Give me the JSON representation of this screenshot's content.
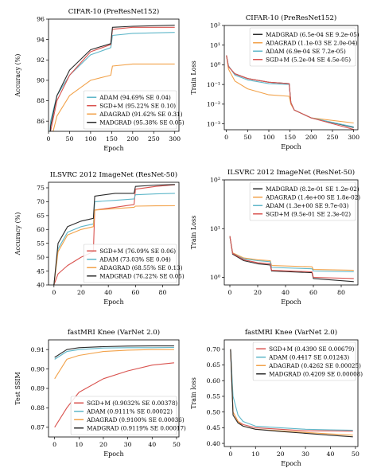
{
  "colors": {
    "ADAM": "#5fb7c9",
    "ADAGRAD": "#f2a24a",
    "MADGRAD": "#2b2b2b",
    "SGD": "#d9534f"
  },
  "chart_data": [
    {
      "type": "line",
      "title": "CIFAR-10 (PreResNet152)",
      "xlabel": "Epoch",
      "ylabel": "Accuracy (%)",
      "xlim": [
        0,
        310
      ],
      "ylim": [
        85,
        96
      ],
      "xticks": [
        0,
        50,
        100,
        150,
        200,
        250,
        300
      ],
      "yticks": [
        86,
        88,
        90,
        92,
        94,
        96
      ],
      "legend_position": "lower-right",
      "series": [
        {
          "name": "ADAM (94.69% SE 0.04)",
          "key": "ADAM",
          "x": [
            0,
            5,
            20,
            50,
            100,
            148,
            152,
            200,
            300
          ],
          "y": [
            82,
            86,
            88.5,
            90.5,
            92.5,
            93.2,
            94.4,
            94.6,
            94.7
          ]
        },
        {
          "name": "SGD+M (95.22% SE 0.10)",
          "key": "SGD",
          "x": [
            0,
            5,
            20,
            50,
            100,
            148,
            152,
            200,
            300
          ],
          "y": [
            81,
            85,
            88,
            90.5,
            92.8,
            93.5,
            95.0,
            95.2,
            95.2
          ]
        },
        {
          "name": "ADAGRAD (91.62% SE 0.31)",
          "key": "ADAGRAD",
          "x": [
            0,
            5,
            20,
            50,
            100,
            148,
            152,
            200,
            300
          ],
          "y": [
            80,
            84,
            86.5,
            88.5,
            90.0,
            90.5,
            91.4,
            91.6,
            91.6
          ]
        },
        {
          "name": "MADGRAD (95.38% SE 0.05)",
          "key": "MADGRAD",
          "x": [
            0,
            5,
            20,
            50,
            100,
            148,
            152,
            200,
            300
          ],
          "y": [
            81,
            85.5,
            88.5,
            91.0,
            93.0,
            93.6,
            95.2,
            95.3,
            95.4
          ]
        }
      ]
    },
    {
      "type": "line",
      "title": "CIFAR-10 (PreResNet152)",
      "xlabel": "Epoch",
      "ylabel": "Train Loss",
      "yscale": "log",
      "xlim": [
        -5,
        310
      ],
      "ylim": [
        0.0005,
        100
      ],
      "xticks": [
        0,
        50,
        100,
        150,
        200,
        250,
        300
      ],
      "yticks": [
        0.001,
        0.01,
        0.1,
        1,
        10,
        100
      ],
      "ytick_labels": [
        "10⁻³",
        "10⁻²",
        "10⁻¹",
        "10⁰",
        "10¹",
        "10²"
      ],
      "legend_position": "upper-right",
      "series": [
        {
          "name": "MADGRAD (6.5e-04 SE 9.2e-05)",
          "key": "MADGRAD",
          "x": [
            0,
            5,
            20,
            50,
            100,
            148,
            152,
            160,
            200,
            300
          ],
          "y": [
            3,
            0.8,
            0.35,
            0.2,
            0.13,
            0.11,
            0.012,
            0.005,
            0.002,
            0.00065
          ]
        },
        {
          "name": "ADAGRAD (1.1e-03 SE 2.0e-04)",
          "key": "ADAGRAD",
          "x": [
            0,
            5,
            20,
            50,
            100,
            148,
            152,
            160,
            200,
            300
          ],
          "y": [
            3,
            0.6,
            0.15,
            0.06,
            0.03,
            0.025,
            0.01,
            0.005,
            0.002,
            0.0011
          ]
        },
        {
          "name": "ADAM (6.9e-04 SE 7.2e-05)",
          "key": "ADAM",
          "x": [
            0,
            5,
            20,
            50,
            100,
            148,
            152,
            160,
            200,
            300
          ],
          "y": [
            3,
            0.9,
            0.3,
            0.17,
            0.11,
            0.1,
            0.012,
            0.005,
            0.002,
            0.0007
          ]
        },
        {
          "name": "SGD+M (5.2e-04 SE 4.5e-05)",
          "key": "SGD",
          "x": [
            0,
            5,
            20,
            50,
            100,
            148,
            152,
            160,
            200,
            300
          ],
          "y": [
            3,
            0.8,
            0.35,
            0.2,
            0.13,
            0.11,
            0.012,
            0.005,
            0.002,
            0.00052
          ]
        }
      ]
    },
    {
      "type": "line",
      "title": "ILSVRC 2012 ImageNet (ResNet-50)",
      "xlabel": "Epoch",
      "ylabel": "Accuracy (%)",
      "xlim": [
        -4,
        92
      ],
      "ylim": [
        40,
        77
      ],
      "xticks": [
        0,
        20,
        40,
        60,
        80
      ],
      "yticks": [
        40,
        45,
        50,
        55,
        60,
        65,
        70,
        75
      ],
      "legend_position": "lower-right",
      "series": [
        {
          "name": "SGD+M (76.09% SE 0.06)",
          "key": "SGD",
          "x": [
            0,
            3,
            10,
            20,
            29,
            30,
            45,
            59,
            60,
            75,
            89
          ],
          "y": [
            40,
            44,
            47,
            50,
            52,
            67,
            68,
            69,
            74.5,
            75.5,
            76.1
          ]
        },
        {
          "name": "ADAM (73.03% SE 0.04)",
          "key": "ADAM",
          "x": [
            0,
            3,
            10,
            20,
            29,
            30,
            45,
            59,
            60,
            75,
            89
          ],
          "y": [
            40,
            53,
            59,
            61,
            62,
            70,
            70.5,
            71,
            72.5,
            72.8,
            73.0
          ]
        },
        {
          "name": "ADAGRAD (68.55% SE 0.13)",
          "key": "ADAGRAD",
          "x": [
            0,
            3,
            10,
            20,
            29,
            30,
            45,
            59,
            60,
            75,
            89
          ],
          "y": [
            40,
            52,
            58,
            60,
            61,
            67,
            67.5,
            68,
            68.4,
            68.5,
            68.55
          ]
        },
        {
          "name": "MADGRAD (76.22% SE 0.05)",
          "key": "MADGRAD",
          "x": [
            0,
            3,
            10,
            20,
            29,
            30,
            45,
            59,
            60,
            75,
            89
          ],
          "y": [
            40,
            55,
            61,
            63,
            64,
            72,
            73,
            73,
            75.5,
            76,
            76.2
          ]
        }
      ]
    },
    {
      "type": "line",
      "title": "ILSVRC 2012 ImageNet (ResNet-50)",
      "xlabel": "Epoch",
      "ylabel": "Train Loss",
      "yscale": "log",
      "xlim": [
        -4,
        92
      ],
      "ylim": [
        0.7,
        100
      ],
      "xticks": [
        0,
        20,
        40,
        60,
        80
      ],
      "yticks": [
        1,
        10,
        100
      ],
      "ytick_labels": [
        "10⁰",
        "10¹",
        "10²"
      ],
      "legend_position": "upper-right",
      "series": [
        {
          "name": "MADGRAD (8.2e-01 SE 1.2e-02)",
          "key": "MADGRAD",
          "x": [
            0,
            2,
            10,
            20,
            29,
            30,
            59,
            60,
            89
          ],
          "y": [
            7,
            3,
            2.2,
            1.9,
            1.8,
            1.35,
            1.25,
            0.95,
            0.82
          ]
        },
        {
          "name": "ADAGRAD (1.4e+00 SE 1.8e-02)",
          "key": "ADAGRAD",
          "x": [
            0,
            2,
            10,
            20,
            29,
            30,
            59,
            60,
            89
          ],
          "y": [
            7,
            3.2,
            2.5,
            2.3,
            2.2,
            1.75,
            1.65,
            1.45,
            1.4
          ]
        },
        {
          "name": "ADAM (1.3e+00 SE 9.7e-03)",
          "key": "ADAM",
          "x": [
            0,
            2,
            10,
            20,
            29,
            30,
            59,
            60,
            89
          ],
          "y": [
            7,
            3.1,
            2.4,
            2.2,
            2.1,
            1.6,
            1.5,
            1.35,
            1.3
          ]
        },
        {
          "name": "SGD+M (9.5e-01 SE 2.3e-02)",
          "key": "SGD",
          "x": [
            0,
            2,
            10,
            20,
            29,
            30,
            59,
            60,
            89
          ],
          "y": [
            7,
            3.1,
            2.3,
            2.0,
            1.9,
            1.4,
            1.3,
            1.0,
            0.95
          ]
        }
      ]
    },
    {
      "type": "line",
      "title": "fastMRI Knee (VarNet 2.0)",
      "xlabel": "Epoch",
      "ylabel": "Test SSIM",
      "xlim": [
        -2.5,
        51
      ],
      "ylim": [
        0.865,
        0.915
      ],
      "xticks": [
        0,
        10,
        20,
        30,
        40,
        50
      ],
      "yticks": [
        0.87,
        0.88,
        0.89,
        0.9,
        0.91
      ],
      "legend_position": "lower-right",
      "series": [
        {
          "name": "SGD+M (0.9032% SE 0.00378)",
          "key": "SGD",
          "x": [
            0,
            5,
            10,
            20,
            30,
            40,
            49
          ],
          "y": [
            0.87,
            0.88,
            0.888,
            0.895,
            0.899,
            0.902,
            0.9032
          ]
        },
        {
          "name": "ADAM (0.9111% SE 0.00022)",
          "key": "ADAM",
          "x": [
            0,
            5,
            10,
            20,
            30,
            40,
            49
          ],
          "y": [
            0.905,
            0.909,
            0.91,
            0.9108,
            0.911,
            0.911,
            0.9111
          ]
        },
        {
          "name": "ADAGRAD (0.9100% SE 0.00036)",
          "key": "ADAGRAD",
          "x": [
            0,
            5,
            10,
            20,
            30,
            40,
            49
          ],
          "y": [
            0.895,
            0.905,
            0.907,
            0.909,
            0.9097,
            0.91,
            0.91
          ]
        },
        {
          "name": "MADGRAD (0.9119% SE 0.00017)",
          "key": "MADGRAD",
          "x": [
            0,
            5,
            10,
            20,
            30,
            40,
            49
          ],
          "y": [
            0.906,
            0.91,
            0.911,
            0.9115,
            0.9118,
            0.9119,
            0.9119
          ]
        }
      ]
    },
    {
      "type": "line",
      "title": "fastMRI Knee (VarNet 2.0)",
      "xlabel": "Epoch",
      "ylabel": "Train loss",
      "xlim": [
        -2.5,
        51
      ],
      "ylim": [
        0.39,
        0.73
      ],
      "xticks": [
        0,
        10,
        20,
        30,
        40,
        50
      ],
      "yticks": [
        0.4,
        0.45,
        0.5,
        0.55,
        0.6,
        0.65,
        0.7
      ],
      "legend_position": "upper-right",
      "series": [
        {
          "name": "SGD+M (0.4390 SE 0.00679)",
          "key": "SGD",
          "x": [
            0,
            1,
            3,
            5,
            10,
            20,
            30,
            40,
            49
          ],
          "y": [
            0.7,
            0.5,
            0.47,
            0.46,
            0.45,
            0.445,
            0.44,
            0.44,
            0.439
          ]
        },
        {
          "name": "ADAM (0.4417 SE 0.01243)",
          "key": "ADAM",
          "x": [
            0,
            1,
            3,
            5,
            10,
            20,
            30,
            40,
            49
          ],
          "y": [
            0.7,
            0.55,
            0.49,
            0.47,
            0.455,
            0.45,
            0.445,
            0.443,
            0.4417
          ]
        },
        {
          "name": "ADAGRAD (0.4262 SE 0.00025)",
          "key": "ADAGRAD",
          "x": [
            0,
            1,
            3,
            5,
            10,
            20,
            30,
            40,
            49
          ],
          "y": [
            0.7,
            0.5,
            0.47,
            0.455,
            0.445,
            0.44,
            0.435,
            0.43,
            0.4262
          ]
        },
        {
          "name": "MADGRAD (0.4209 SE 0.00008)",
          "key": "MADGRAD",
          "x": [
            0,
            1,
            3,
            5,
            10,
            20,
            30,
            40,
            49
          ],
          "y": [
            0.7,
            0.49,
            0.465,
            0.455,
            0.445,
            0.438,
            0.432,
            0.426,
            0.4209
          ]
        }
      ]
    }
  ]
}
